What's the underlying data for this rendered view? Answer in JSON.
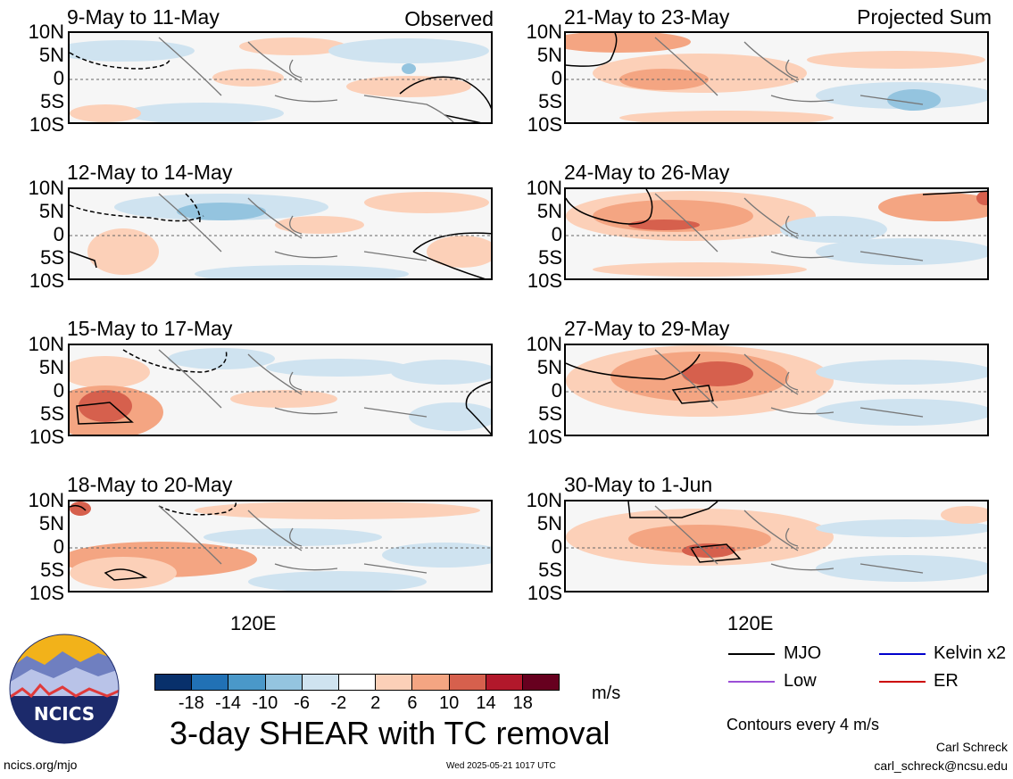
{
  "panels_left": [
    {
      "title": "9-May to 11-May",
      "tag": "Observed"
    },
    {
      "title": "12-May to 14-May",
      "tag": ""
    },
    {
      "title": "15-May to 17-May",
      "tag": ""
    },
    {
      "title": "18-May to 20-May",
      "tag": ""
    }
  ],
  "panels_right": [
    {
      "title": "21-May to 23-May",
      "tag": "Projected Sum"
    },
    {
      "title": "24-May to 26-May",
      "tag": ""
    },
    {
      "title": "27-May to 29-May",
      "tag": ""
    },
    {
      "title": "30-May to 1-Jun",
      "tag": ""
    }
  ],
  "latitude_labels": [
    "10N",
    "5N",
    "0",
    "5S",
    "10S"
  ],
  "longitude_label": "120E",
  "colorbar": {
    "ticks": [
      "-18",
      "-14",
      "-10",
      "-6",
      "-2",
      "2",
      "6",
      "10",
      "14",
      "18"
    ],
    "colors": [
      "#08306b",
      "#2171b5",
      "#4a98c9",
      "#94c4df",
      "#cfe3f0",
      "#ffffff",
      "#fcd0b8",
      "#f4a582",
      "#d6604d",
      "#b2182b",
      "#67001f"
    ],
    "unit": "m/s"
  },
  "main_title": "3-day SHEAR with TC removal",
  "legend": [
    {
      "label": "MJO",
      "color": "#000000"
    },
    {
      "label": "Kelvin x2",
      "color": "#0000cc"
    },
    {
      "label": "Low",
      "color": "#9b4fd6"
    },
    {
      "label": "ER",
      "color": "#cc0000"
    }
  ],
  "contour_note": "Contours every 4 m/s",
  "footer": {
    "left": "ncics.org/mjo",
    "center": "Wed 2025-05-21 1017 UTC",
    "author": "Carl Schreck",
    "email": "carl_schreck@ncsu.edu"
  },
  "logo": {
    "text": "NCICS"
  }
}
